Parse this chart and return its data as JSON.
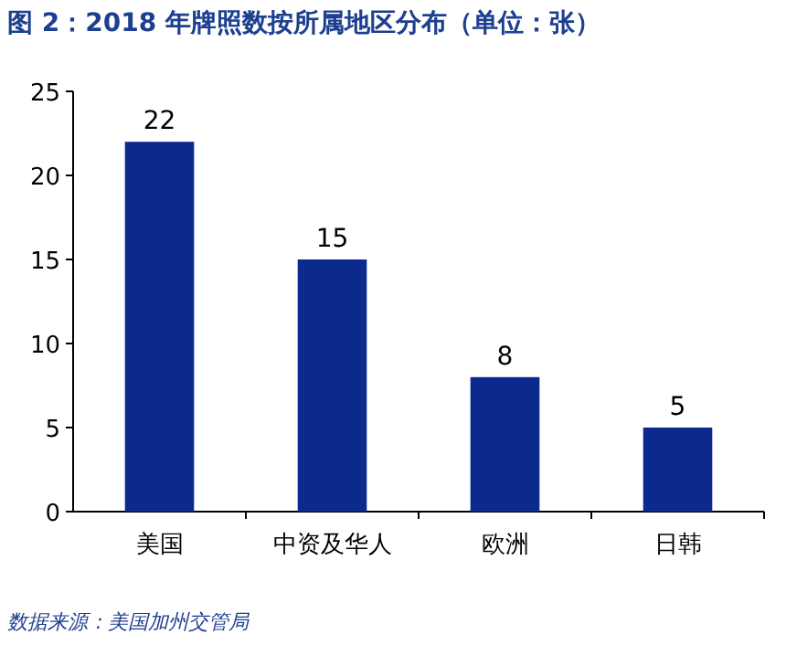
{
  "chart_data": {
    "type": "bar",
    "title": "图 2：2018 年牌照数按所属地区分布（单位：张）",
    "categories": [
      "美国",
      "中资及华人",
      "欧洲",
      "日韩"
    ],
    "values": [
      22,
      15,
      8,
      5
    ],
    "color": "#0c2a8e",
    "ylim": [
      0,
      25
    ],
    "yticks": [
      0,
      5,
      10,
      15,
      20,
      25
    ],
    "grid": false,
    "data_labels": true,
    "annotations": [
      "数据来源：美国加州交管局"
    ]
  }
}
